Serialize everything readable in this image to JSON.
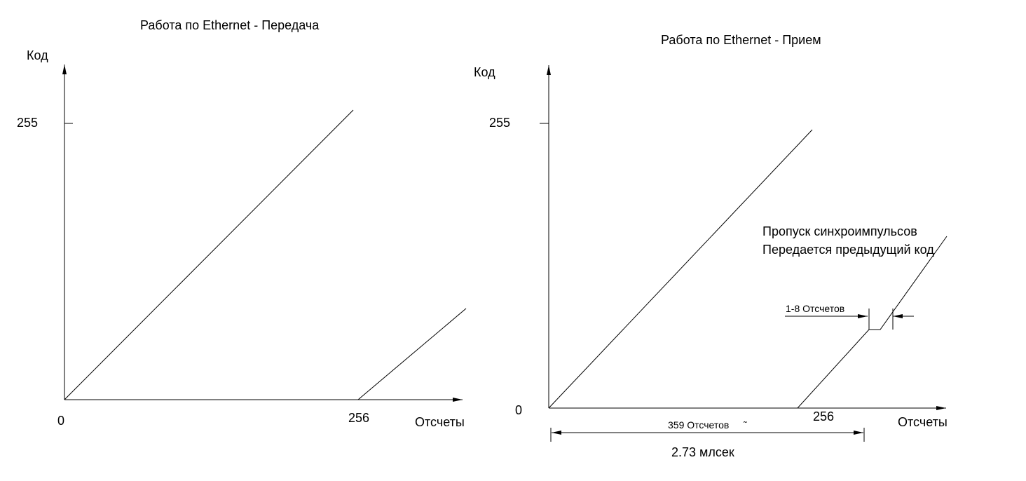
{
  "left_panel": {
    "title": "Работа по Ethernet - Передача",
    "y_axis_label": "Код",
    "x_axis_label": "Отсчеты",
    "y_tick_max": "255",
    "origin_label": "0",
    "x_tick_label": "256"
  },
  "right_panel": {
    "title": "Работа по Ethernet - Прием",
    "y_axis_label": "Код",
    "x_axis_label": "Отсчеты",
    "y_tick_max": "255",
    "origin_label": "0",
    "x_tick_label": "256",
    "annotation_line1": "Пропуск синхроимпульсов",
    "annotation_line2": "Передается предыдущий код",
    "gap_label": "1-8 Отсчетов",
    "span_label": "359 Отсчетов",
    "span_mark": "̃",
    "time_label": "2.73 млсек"
  },
  "colors": {
    "line": "#000000",
    "background": "#ffffff"
  }
}
